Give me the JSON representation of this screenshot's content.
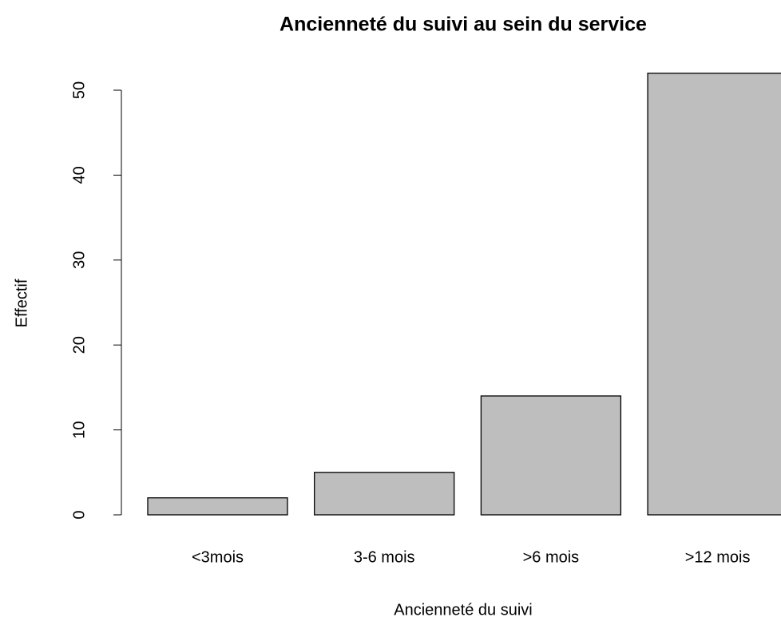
{
  "chart_data": {
    "type": "bar",
    "title": "Ancienneté du suivi au sein du service",
    "x_label": "Ancienneté du suivi",
    "y_label": "Effectif",
    "categories": [
      "<3mois",
      "3-6 mois",
      ">6 mois",
      ">12 mois"
    ],
    "values": [
      2,
      5,
      14,
      52
    ],
    "color": "#bebebe",
    "ylim": [
      0,
      50
    ],
    "yticks": [
      0,
      10,
      20,
      30,
      40,
      50
    ],
    "grid": false
  }
}
